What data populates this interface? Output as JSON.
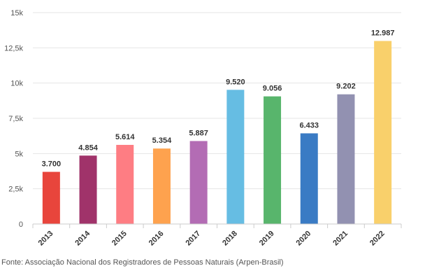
{
  "chart_data": {
    "type": "bar",
    "categories": [
      "2013",
      "2014",
      "2015",
      "2016",
      "2017",
      "2018",
      "2019",
      "2020",
      "2021",
      "2022"
    ],
    "values": [
      3700,
      4854,
      5614,
      5354,
      5887,
      9520,
      9056,
      6433,
      9202,
      12987
    ],
    "data_labels": [
      "3.700",
      "4.854",
      "5.614",
      "5.354",
      "5.887",
      "9.520",
      "9.056",
      "6.433",
      "9.202",
      "12.987"
    ],
    "colors": [
      "#e8453c",
      "#a0336a",
      "#fe7d83",
      "#fea24e",
      "#b36cb4",
      "#66bde3",
      "#58b56c",
      "#3a7bc4",
      "#9291b1",
      "#f9d06b"
    ],
    "ylim": [
      0,
      15000
    ],
    "y_ticks": [
      0,
      2500,
      5000,
      7500,
      10000,
      12500,
      15000
    ],
    "y_tick_labels": [
      "0",
      "2,5k",
      "5k",
      "7,5k",
      "10k",
      "12,5k",
      "15k"
    ],
    "grid": true,
    "title": "",
    "xlabel": "",
    "ylabel": ""
  },
  "source": "Fonte: Associação Nacional dos Registradores de Pessoas Naturais (Arpen-Brasil)"
}
